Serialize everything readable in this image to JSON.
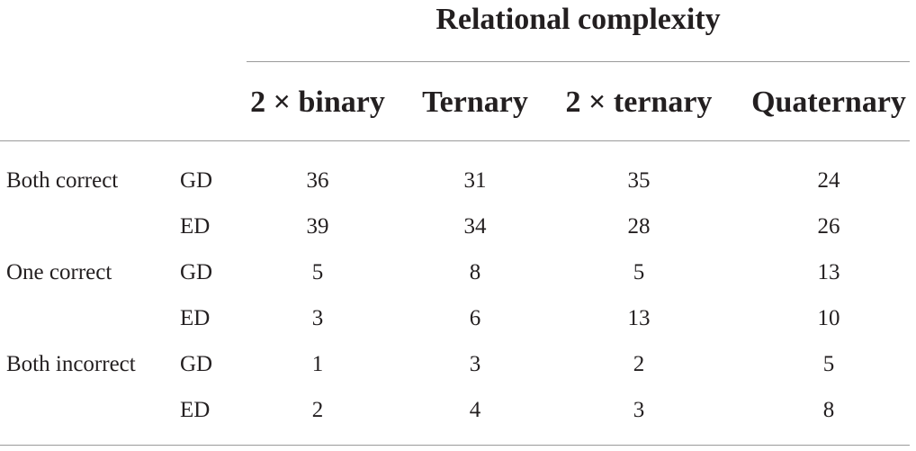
{
  "table": {
    "group_header": "Relational complexity",
    "columns": [
      "2 × binary",
      "Ternary",
      "2 × ternary",
      "Quaternary"
    ],
    "rows": [
      {
        "label": "Both correct",
        "sub": "GD",
        "values": [
          "36",
          "31",
          "35",
          "24"
        ]
      },
      {
        "label": "",
        "sub": "ED",
        "values": [
          "39",
          "34",
          "28",
          "26"
        ]
      },
      {
        "label": "One correct",
        "sub": "GD",
        "values": [
          "5",
          "8",
          "5",
          "13"
        ]
      },
      {
        "label": "",
        "sub": "ED",
        "values": [
          "3",
          "6",
          "13",
          "10"
        ]
      },
      {
        "label": "Both incorrect",
        "sub": "GD",
        "values": [
          "1",
          "3",
          "2",
          "5"
        ]
      },
      {
        "label": "",
        "sub": "ED",
        "values": [
          "2",
          "4",
          "3",
          "8"
        ]
      }
    ]
  }
}
